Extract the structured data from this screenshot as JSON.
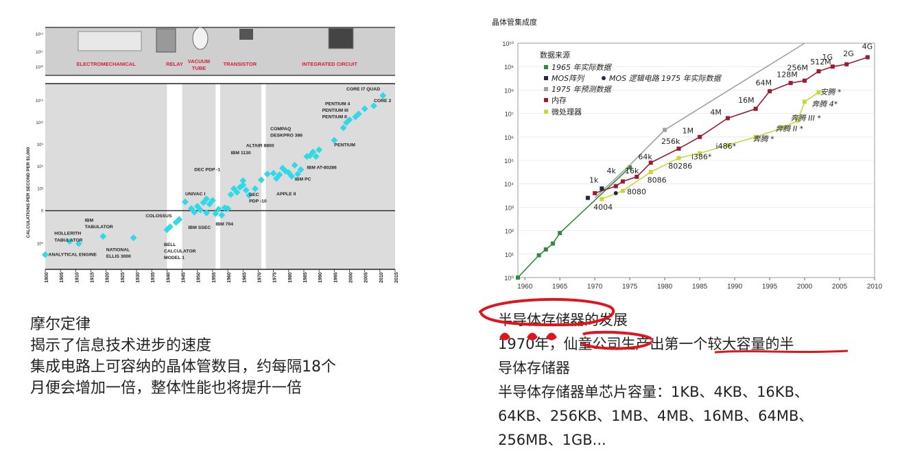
{
  "chart_data": [
    {
      "type": "scatter",
      "ylabel": "CALCULATIONS PER SECOND PER $1,000",
      "x_ticks": [
        1900,
        1905,
        1910,
        1915,
        1920,
        1925,
        1930,
        1935,
        1940,
        1945,
        1950,
        1955,
        1960,
        1965,
        1970,
        1975,
        1980,
        1985,
        1990,
        1995,
        2000,
        2005,
        2010,
        2015
      ],
      "y_tick_labels": [
        "10⁶",
        "0",
        "10³",
        "10⁶",
        "10⁹",
        "10¹²",
        "10¹⁵",
        "10¹⁸",
        "10¹⁴",
        "10¹⁷",
        "10²⁰"
      ],
      "eras": [
        {
          "label": "ELECTROMECHANICAL",
          "from": 1900,
          "to": 1940
        },
        {
          "label": "RELAY",
          "from": 1940,
          "to": 1945
        },
        {
          "label": "VACUUM TUBE",
          "from": 1945,
          "to": 1956
        },
        {
          "label": "TRANSISTOR",
          "from": 1956,
          "to": 1972
        },
        {
          "label": "INTEGRATED CIRCUIT",
          "from": 1972,
          "to": 2015
        }
      ],
      "ylim": [
        -8,
        25
      ],
      "labels": [
        {
          "text": "ANALYTICAL ENGINE",
          "x": 1901,
          "y": -6.2
        },
        {
          "text": "HOLLERITH",
          "x": 1903,
          "y": -3.3
        },
        {
          "text": "TABULATOR",
          "x": 1903,
          "y": -4.2
        },
        {
          "text": "IBM",
          "x": 1913,
          "y": -1.5
        },
        {
          "text": "TABULATOR",
          "x": 1913,
          "y": -2.4
        },
        {
          "text": "NATIONAL",
          "x": 1920,
          "y": -5.5
        },
        {
          "text": "ELLIS 3000",
          "x": 1920,
          "y": -6.4
        },
        {
          "text": "COLOSSUS",
          "x": 1933,
          "y": -0.9
        },
        {
          "text": "BELL",
          "x": 1939,
          "y": -4.8
        },
        {
          "text": "CALCULATOR",
          "x": 1939,
          "y": -5.7
        },
        {
          "text": "MODEL 1",
          "x": 1939,
          "y": -6.6
        },
        {
          "text": "IBM SSEC",
          "x": 1947,
          "y": -2.5
        },
        {
          "text": "IBM 704",
          "x": 1956,
          "y": -2.0
        },
        {
          "text": "UNIVAC I",
          "x": 1946,
          "y": 2.1
        },
        {
          "text": "DEC PDP -1",
          "x": 1949,
          "y": 5.4
        },
        {
          "text": "IBM 1130",
          "x": 1961,
          "y": 7.7
        },
        {
          "text": "DEC",
          "x": 1967,
          "y": 2.0
        },
        {
          "text": "PDP -10",
          "x": 1967,
          "y": 1.1
        },
        {
          "text": "ALTAIR 8800",
          "x": 1966,
          "y": 8.7
        },
        {
          "text": "COMPAQ",
          "x": 1974,
          "y": 11.0
        },
        {
          "text": "DESKPRO 386",
          "x": 1974,
          "y": 10.1
        },
        {
          "text": "IBM AT-80286",
          "x": 1986,
          "y": 5.7
        },
        {
          "text": "IBM PC",
          "x": 1982,
          "y": 4.1
        },
        {
          "text": "APPLE II",
          "x": 1976,
          "y": 2.1
        },
        {
          "text": "PENTIUM",
          "x": 1995,
          "y": 8.8
        },
        {
          "text": "PENTIUM 4",
          "x": 1992,
          "y": 14.4
        },
        {
          "text": "PENTIUM III",
          "x": 1991,
          "y": 13.5
        },
        {
          "text": "PENTIUM II",
          "x": 1991,
          "y": 12.6
        },
        {
          "text": "CORE I7 QUAD",
          "x": 1999,
          "y": 16.4
        },
        {
          "text": "CORE 2",
          "x": 2008,
          "y": 14.8
        }
      ],
      "points": [
        [
          1900,
          -6.0
        ],
        [
          1908,
          -4.2
        ],
        [
          1911,
          -4.5
        ],
        [
          1919,
          -3.5
        ],
        [
          1929,
          -3.7
        ],
        [
          1940,
          -2.6
        ],
        [
          1941,
          -2.2
        ],
        [
          1943,
          -1.6
        ],
        [
          1944,
          -1.2
        ],
        [
          1946,
          1.2
        ],
        [
          1948,
          0.3
        ],
        [
          1949,
          -0.2
        ],
        [
          1950,
          0.6
        ],
        [
          1951,
          0.1
        ],
        [
          1952,
          1.1
        ],
        [
          1953,
          -0.3
        ],
        [
          1953,
          1.6
        ],
        [
          1954,
          0.9
        ],
        [
          1955,
          1.4
        ],
        [
          1956,
          -0.4
        ],
        [
          1957,
          0.2
        ],
        [
          1958,
          -0.6
        ],
        [
          1959,
          0.4
        ],
        [
          1960,
          0.3
        ],
        [
          1961,
          2.2
        ],
        [
          1962,
          3.0
        ],
        [
          1963,
          2.5
        ],
        [
          1964,
          3.2
        ],
        [
          1965,
          4.1
        ],
        [
          1965,
          3.5
        ],
        [
          1966,
          2.8
        ],
        [
          1967,
          2.1
        ],
        [
          1969,
          3.0
        ],
        [
          1971,
          4.2
        ],
        [
          1973,
          5.0
        ],
        [
          1975,
          5.1
        ],
        [
          1976,
          4.4
        ],
        [
          1977,
          4.9
        ],
        [
          1978,
          5.8
        ],
        [
          1979,
          5.4
        ],
        [
          1980,
          5.2
        ],
        [
          1981,
          4.7
        ],
        [
          1982,
          6.2
        ],
        [
          1983,
          5.0
        ],
        [
          1984,
          5.6
        ],
        [
          1986,
          7.4
        ],
        [
          1987,
          7.5
        ],
        [
          1988,
          8.0
        ],
        [
          1989,
          7.4
        ],
        [
          1990,
          8.3
        ],
        [
          1995,
          9.6
        ],
        [
          1998,
          11.3
        ],
        [
          1999,
          12.0
        ],
        [
          2000,
          12.4
        ],
        [
          2002,
          12.8
        ],
        [
          2003,
          13.2
        ],
        [
          2005,
          13.9
        ],
        [
          2008,
          14.3
        ],
        [
          2011,
          15.7
        ]
      ]
    },
    {
      "type": "line",
      "title": "晶体管集成度",
      "x_ticks": [
        1960,
        1965,
        1970,
        1975,
        1980,
        1985,
        1990,
        1995,
        2000,
        2005,
        2010
      ],
      "y_tick_labels": [
        "10⁰",
        "10¹",
        "10²",
        "10³",
        "10⁴",
        "10⁵",
        "10⁶",
        "10⁷",
        "10⁸",
        "10⁹",
        "10¹⁰"
      ],
      "ylim": [
        0,
        10
      ],
      "xlim": [
        1959,
        2010
      ],
      "legend_title": "数据来源",
      "legend": [
        {
          "label": "1965 年实际数据",
          "color": "#2e8b3a"
        },
        {
          "label": "MOS阵列",
          "color": "#1e2a4a"
        },
        {
          "label": "MOS 逻辑电路 1975 年实际数据",
          "color": "#1e2a4a"
        },
        {
          "label": "1975 年预测数据",
          "color": "#a0a0a0"
        },
        {
          "label": "内存",
          "color": "#9b1b30"
        },
        {
          "label": "微处理器",
          "color": "#c8d63c"
        }
      ],
      "series": [
        {
          "name": "1965 年实际数据",
          "color": "#2e8b3a",
          "x": [
            1959,
            1962,
            1963,
            1964,
            1965,
            1975
          ],
          "y": [
            0,
            0.95,
            1.2,
            1.45,
            1.9,
            4.7
          ]
        },
        {
          "name": "1975 年预测数据",
          "color": "#a0a0a0",
          "x": [
            1970,
            1975,
            1980,
            2000
          ],
          "y": [
            3.4,
            4.8,
            6.3,
            10
          ]
        },
        {
          "name": "内存",
          "color": "#9b1b30",
          "x": [
            1970,
            1973,
            1974,
            1976,
            1978,
            1982,
            1985,
            1989,
            1993,
            1995,
            1998,
            2000,
            2002,
            2004,
            2006,
            2009
          ],
          "y": [
            3.6,
            3.9,
            4.1,
            4.3,
            4.9,
            5.5,
            6.0,
            6.8,
            7.2,
            7.95,
            8.3,
            8.4,
            8.8,
            9.0,
            9.1,
            9.4
          ]
        },
        {
          "name": "微处理器",
          "color": "#c8d63c",
          "x": [
            1971,
            1974,
            1978,
            1982,
            1985,
            1989,
            1993,
            1997,
            1999,
            2000,
            2002
          ],
          "y": [
            3.35,
            3.7,
            4.5,
            5.1,
            5.3,
            5.65,
            6.0,
            6.4,
            6.7,
            7.5,
            7.9
          ]
        },
        {
          "name": "MOS阵列",
          "color": "#1e2a4a",
          "x": [
            1969,
            1971
          ],
          "y": [
            3.4,
            3.8
          ]
        },
        {
          "name": "MOS 逻辑电路 1975 年实际数据",
          "color": "#1e2a4a",
          "x": [
            1973
          ],
          "y": [
            3.6
          ]
        }
      ],
      "point_labels": [
        {
          "text": "1k",
          "x": 1969.2,
          "y": 4.05
        },
        {
          "text": "4k",
          "x": 1971.7,
          "y": 4.45
        },
        {
          "text": "16k",
          "x": 1974.3,
          "y": 4.45
        },
        {
          "text": "64k",
          "x": 1976.2,
          "y": 5.05
        },
        {
          "text": "256k",
          "x": 1979.5,
          "y": 5.7
        },
        {
          "text": "1M",
          "x": 1982.5,
          "y": 6.15
        },
        {
          "text": "4M",
          "x": 1986.5,
          "y": 6.95
        },
        {
          "text": "16M",
          "x": 1990.5,
          "y": 7.45
        },
        {
          "text": "64M",
          "x": 1993,
          "y": 8.2
        },
        {
          "text": "128M",
          "x": 1996,
          "y": 8.55
        },
        {
          "text": "256M",
          "x": 1997.5,
          "y": 8.85
        },
        {
          "text": "512M",
          "x": 2000.8,
          "y": 9.1
        },
        {
          "text": "1G",
          "x": 2002.5,
          "y": 9.3
        },
        {
          "text": "2G",
          "x": 2005.5,
          "y": 9.45
        },
        {
          "text": "4G",
          "x": 2008.2,
          "y": 9.75
        },
        {
          "text": "4004",
          "x": 1969.8,
          "y": 2.9
        },
        {
          "text": "8080",
          "x": 1974.6,
          "y": 3.55
        },
        {
          "text": "8086",
          "x": 1977.5,
          "y": 4.05
        },
        {
          "text": "80286",
          "x": 1980.5,
          "y": 4.65
        },
        {
          "text": "i386*",
          "x": 1983.8,
          "y": 5.05
        },
        {
          "text": "i486*",
          "x": 1987.3,
          "y": 5.5
        },
        {
          "text": "奔腾 *",
          "x": 1992.6,
          "y": 5.8
        },
        {
          "text": "奔腾 II *",
          "x": 1995.8,
          "y": 6.25
        },
        {
          "text": "奔腾 III *",
          "x": 1998,
          "y": 6.7
        },
        {
          "text": "奔腾 4*",
          "x": 2001,
          "y": 7.3
        },
        {
          "text": "安腾 *",
          "x": 2002.2,
          "y": 7.8
        }
      ]
    }
  ],
  "captions": {
    "left": [
      "摩尔定律",
      "揭示了信息技术进步的速度",
      "集成电路上可容纳的晶体管数目，约每隔18个",
      "月便会增加一倍，整体性能也将提升一倍"
    ],
    "right": [
      "半导体存储器的发展",
      "1970年，仙童公司生产出第一个较大容量的半",
      "导体存储器",
      "半导体存储器单芯片容量：1KB、4KB、16KB、",
      "64KB、256KB、1MB、4MB、16MB、64MB、",
      "256MB、1GB..."
    ]
  },
  "colors": {
    "cyan": "#30d8e8",
    "era_text": "#d6203a",
    "memory": "#9b1b30",
    "cpu": "#c8d63c",
    "annotation": "#e0141a"
  }
}
